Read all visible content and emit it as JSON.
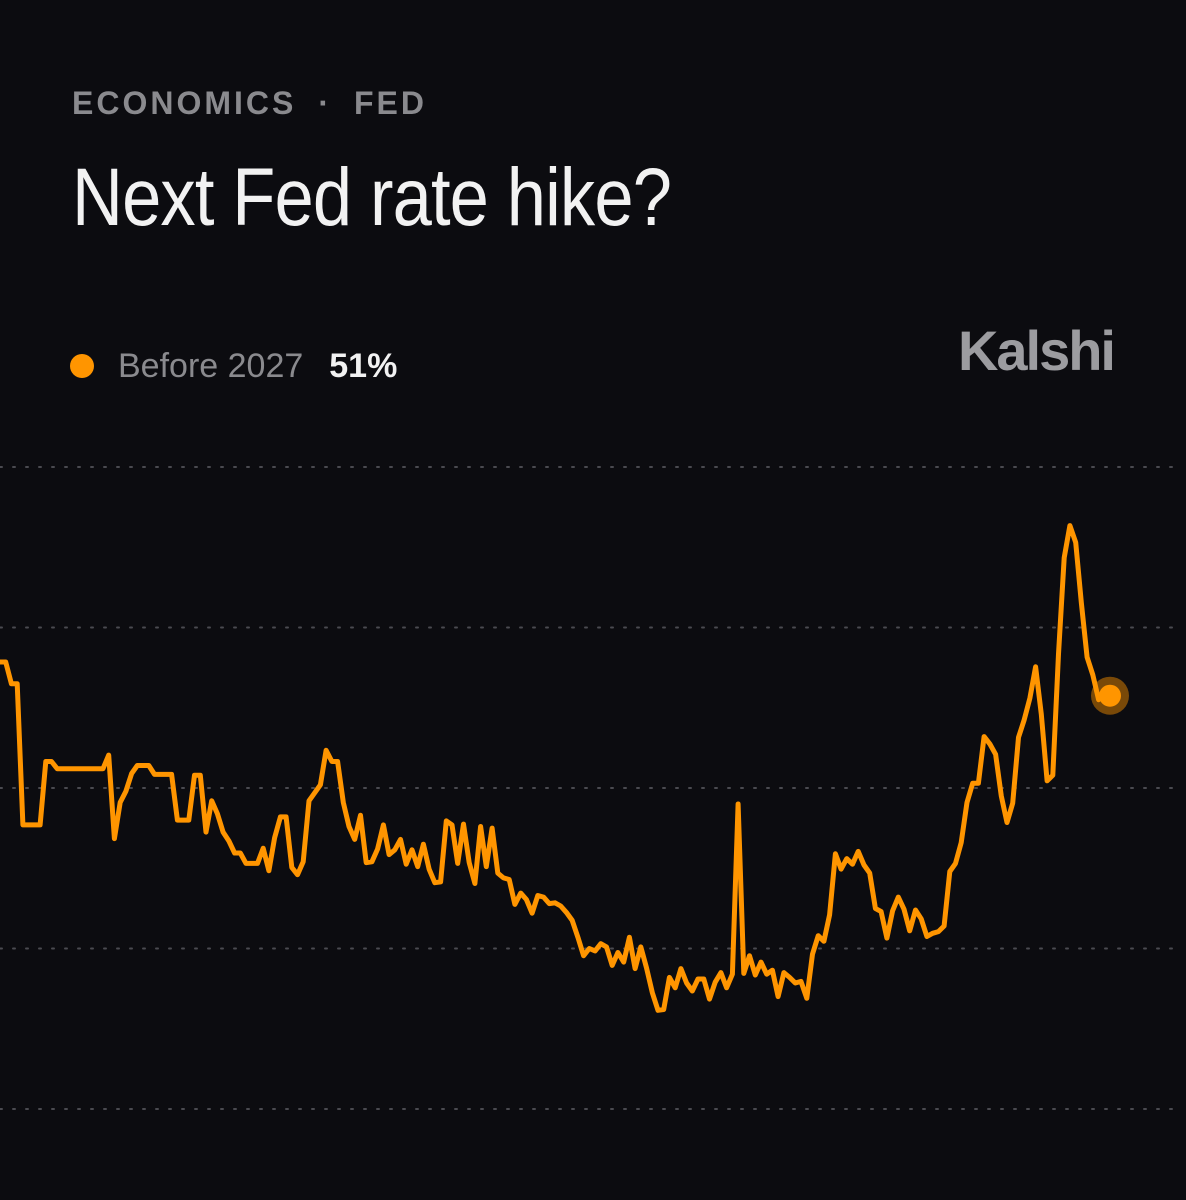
{
  "header": {
    "category": "ECONOMICS",
    "separator": "·",
    "subcategory": "FED",
    "title": "Next Fed rate hike?"
  },
  "brand": {
    "name": "Kalshi"
  },
  "legend": {
    "label": "Before 2027",
    "value": "51%"
  },
  "colors": {
    "background": "#0c0c10",
    "series": "#ff9500",
    "grid": "#4a4a50",
    "muted_text": "#8a8a8e",
    "text": "#f2f2f2"
  },
  "chart_data": {
    "type": "line",
    "title": "Next Fed rate hike?",
    "xlabel": "",
    "ylabel": "",
    "ylim": [
      0,
      80
    ],
    "gridlines": [
      0,
      20,
      40,
      60,
      80
    ],
    "grid": "dotted horizontal",
    "legend_position": "top-left",
    "series": [
      {
        "name": "Before 2027",
        "current_value": 51,
        "values": [
          55.7,
          55.7,
          53.0,
          53.0,
          35.4,
          35.4,
          35.4,
          35.4,
          43.3,
          43.3,
          42.4,
          42.4,
          42.4,
          42.4,
          42.4,
          42.4,
          42.4,
          42.4,
          42.4,
          44.1,
          33.7,
          38.2,
          39.6,
          41.8,
          42.8,
          42.8,
          42.8,
          41.7,
          41.7,
          41.7,
          41.7,
          36.0,
          36.0,
          36.0,
          41.6,
          41.6,
          34.5,
          38.4,
          36.8,
          34.5,
          33.4,
          31.9,
          31.9,
          30.6,
          30.6,
          30.6,
          32.5,
          29.7,
          33.8,
          36.4,
          36.4,
          30.1,
          29.2,
          30.8,
          38.4,
          39.4,
          40.4,
          44.7,
          43.3,
          43.3,
          38.2,
          35.2,
          33.6,
          36.6,
          30.7,
          30.8,
          32.4,
          35.4,
          31.7,
          32.3,
          33.6,
          30.5,
          32.3,
          30.2,
          33.0,
          29.9,
          28.2,
          28.3,
          35.9,
          35.4,
          30.6,
          35.5,
          30.7,
          28.1,
          35.2,
          30.2,
          35.0,
          29.4,
          28.8,
          28.6,
          25.5,
          26.9,
          26.1,
          24.4,
          26.6,
          26.4,
          25.6,
          25.7,
          25.3,
          24.5,
          23.5,
          21.4,
          19.1,
          20.0,
          19.7,
          20.6,
          20.2,
          17.9,
          19.5,
          18.3,
          21.4,
          17.5,
          20.2,
          17.6,
          14.5,
          12.3,
          12.4,
          16.4,
          15.1,
          17.5,
          15.7,
          14.7,
          16.2,
          16.2,
          13.7,
          15.8,
          17.0,
          15.1,
          16.8,
          38.0,
          16.9,
          19.1,
          16.7,
          18.3,
          16.8,
          17.3,
          14.0,
          17.0,
          16.4,
          15.7,
          15.9,
          13.8,
          19.3,
          21.6,
          20.9,
          24.2,
          31.8,
          29.9,
          31.2,
          30.5,
          32.1,
          30.4,
          29.4,
          25.0,
          24.6,
          21.3,
          24.7,
          26.4,
          24.9,
          22.2,
          24.8,
          23.7,
          21.5,
          21.9,
          22.1,
          22.8,
          29.6,
          30.6,
          33.2,
          38.2,
          40.6,
          40.6,
          46.4,
          45.5,
          44.2,
          39.0,
          35.7,
          38.1,
          46.3,
          48.5,
          51.2,
          55.1,
          49.2,
          40.9,
          41.6,
          56.7,
          68.7,
          72.7,
          70.6,
          63.0,
          56.3,
          54.1,
          51.0,
          52.1,
          51.5
        ]
      }
    ]
  }
}
